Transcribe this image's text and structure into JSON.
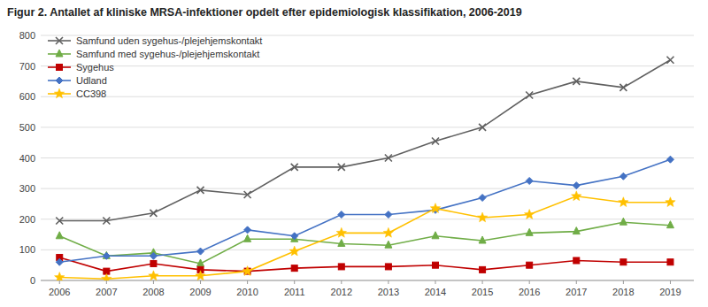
{
  "chart_data": {
    "type": "line",
    "title": "Figur 2. Antallet af kliniske MRSA-infektioner opdelt efter epidemiologisk klassifikation,  2006-2019",
    "x": [
      2006,
      2007,
      2008,
      2009,
      2010,
      2011,
      2012,
      2013,
      2014,
      2015,
      2016,
      2017,
      2018,
      2019
    ],
    "xlim": [
      2005.6,
      2019.5
    ],
    "xticks": [
      2006,
      2007,
      2008,
      2009,
      2010,
      2011,
      2012,
      2013,
      2014,
      2015,
      2016,
      2017,
      2018,
      2019
    ],
    "ylim": [
      0,
      800
    ],
    "yticks": [
      0,
      100,
      200,
      300,
      400,
      500,
      600,
      700,
      800
    ],
    "grid": true,
    "legend": "top-left",
    "series": [
      {
        "name": "Samfund uden sygehus-/plejehjemskontakt",
        "color": "#606060",
        "marker": "x",
        "values": [
          195,
          195,
          220,
          295,
          280,
          370,
          370,
          400,
          455,
          500,
          605,
          650,
          630,
          720
        ]
      },
      {
        "name": "Samfund med sygehus-/plejehjemskontakt",
        "color": "#70ad47",
        "marker": "triangle",
        "values": [
          145,
          80,
          90,
          55,
          135,
          135,
          120,
          115,
          145,
          130,
          155,
          160,
          190,
          180
        ]
      },
      {
        "name": "Sygehus",
        "color": "#c00000",
        "marker": "square",
        "values": [
          75,
          30,
          55,
          35,
          30,
          40,
          45,
          45,
          50,
          35,
          50,
          65,
          60,
          60
        ]
      },
      {
        "name": "Udland",
        "color": "#4472c4",
        "marker": "diamond",
        "values": [
          60,
          80,
          80,
          95,
          165,
          145,
          215,
          215,
          230,
          270,
          325,
          310,
          340,
          395
        ]
      },
      {
        "name": "CC398",
        "color": "#ffc000",
        "marker": "star",
        "values": [
          10,
          5,
          15,
          15,
          30,
          95,
          155,
          155,
          235,
          205,
          215,
          275,
          255,
          255
        ]
      }
    ]
  }
}
